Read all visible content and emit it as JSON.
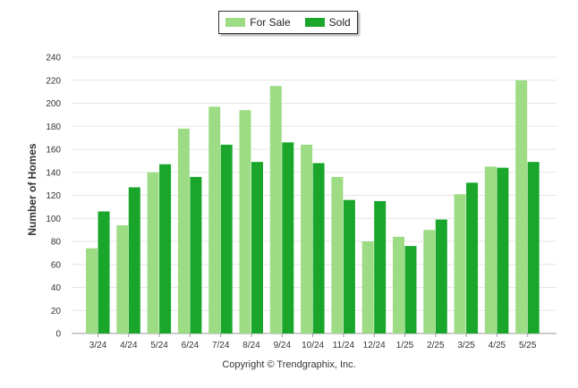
{
  "chart_data": {
    "type": "bar",
    "categories": [
      "3/24",
      "4/24",
      "5/24",
      "6/24",
      "7/24",
      "8/24",
      "9/24",
      "10/24",
      "11/24",
      "12/24",
      "1/25",
      "2/25",
      "3/25",
      "4/25",
      "5/25"
    ],
    "series": [
      {
        "name": "For Sale",
        "color": "#9ddc85",
        "values": [
          74,
          94,
          140,
          178,
          197,
          194,
          215,
          164,
          136,
          80,
          84,
          90,
          121,
          145,
          220
        ]
      },
      {
        "name": "Sold",
        "color": "#1aa62a",
        "values": [
          106,
          127,
          147,
          136,
          164,
          149,
          166,
          148,
          116,
          115,
          76,
          99,
          131,
          144,
          149
        ]
      }
    ],
    "ylabel": "Number of Homes",
    "xlabel": "",
    "ylim": [
      0,
      240
    ],
    "yticks": [
      0,
      20,
      40,
      60,
      80,
      100,
      120,
      140,
      160,
      180,
      200,
      220,
      240
    ],
    "grid": true,
    "legend_position": "top-center"
  },
  "footer": "Copyright © Trendgraphix, Inc."
}
